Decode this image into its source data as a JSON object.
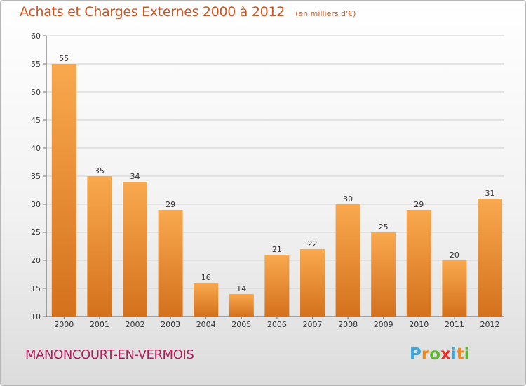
{
  "header": {
    "title": "Achats et Charges Externes 2000 à 2012",
    "subtitle": "(en milliers d'€)"
  },
  "footer": {
    "commune": "MANONCOURT-EN-VERMOIS",
    "logo_letters": [
      "P",
      "r",
      "o",
      "x",
      "i",
      "t",
      "i"
    ],
    "logo_colors": [
      "#3aa8e0",
      "#f08a1c",
      "#5cb531",
      "#e4322b",
      "#3aa8e0",
      "#f08a1c",
      "#5cb531"
    ]
  },
  "colors": {
    "bar_top": "#f9a94f",
    "bar_bottom": "#d4711c",
    "grid": "#cfcfcf",
    "title": "#cc5522",
    "commune": "#b0205c"
  },
  "chart_data": {
    "type": "bar",
    "categories": [
      "2000",
      "2001",
      "2002",
      "2003",
      "2004",
      "2005",
      "2006",
      "2007",
      "2008",
      "2009",
      "2010",
      "2011",
      "2012"
    ],
    "values": [
      55,
      35,
      34,
      29,
      16,
      14,
      21,
      22,
      30,
      25,
      29,
      20,
      31
    ],
    "title": "Achats et Charges Externes 2000 à 2012",
    "subtitle": "(en milliers d'€)",
    "xlabel": "",
    "ylabel": "",
    "ylim": [
      10,
      60
    ],
    "yticks": [
      10,
      15,
      20,
      25,
      30,
      35,
      40,
      45,
      50,
      55,
      60
    ],
    "grid": true,
    "data_labels": true
  }
}
